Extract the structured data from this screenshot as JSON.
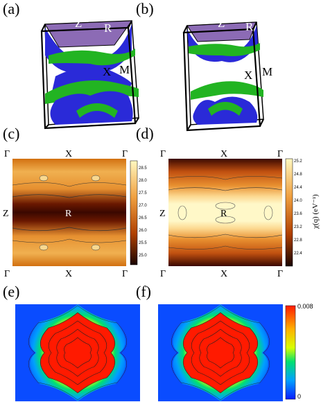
{
  "panels": {
    "a": {
      "label": "(a)",
      "Z": "Z",
      "R": "R",
      "X": "X",
      "M": "M"
    },
    "b": {
      "label": "(b)",
      "Z": "Z",
      "R": "R",
      "X": "X",
      "M": "M"
    },
    "c": {
      "label": "(c)",
      "gamma": "Γ",
      "X": "X",
      "Z": "Z",
      "R": "R",
      "ticks": [
        "28.5",
        "28.0",
        "27.5",
        "27.0",
        "26.5",
        "26.0",
        "25.5",
        "25.0"
      ]
    },
    "d": {
      "label": "(d)",
      "gamma": "Γ",
      "X": "X",
      "Z": "Z",
      "R": "R",
      "ticks": [
        "25.2",
        "24.8",
        "24.4",
        "24.0",
        "23.6",
        "23.2",
        "22.8",
        "22.4"
      ],
      "cbar_title": "χ(q) (eV⁻¹)"
    },
    "e": {
      "label": "(e)"
    },
    "f": {
      "label": "(f)",
      "cbar_max": "0.008",
      "cbar_min": "0"
    }
  },
  "colors": {
    "fermi_blue": "#2a2ad8",
    "fermi_green": "#22b422",
    "heat_dark": "#1a0500",
    "heat_light": "#fff8c0",
    "jet_red": "#ff1a00",
    "jet_blue": "#0a3cff"
  }
}
